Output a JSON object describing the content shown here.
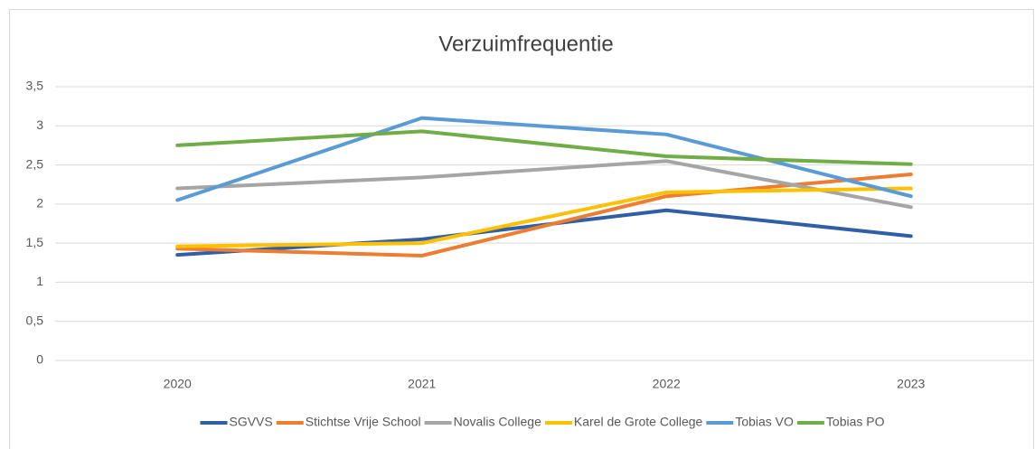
{
  "chart_data": {
    "type": "line",
    "title": "Verzuimfrequentie",
    "categories": [
      "2020",
      "2021",
      "2022",
      "2023"
    ],
    "series": [
      {
        "name": "SGVVS",
        "color": "#2f5fa7",
        "values": [
          1.35,
          1.55,
          1.92,
          1.59
        ]
      },
      {
        "name": "Stichtse Vrije School",
        "color": "#ed7d31",
        "values": [
          1.43,
          1.34,
          2.1,
          2.38
        ]
      },
      {
        "name": "Novalis College",
        "color": "#a5a5a5",
        "values": [
          2.2,
          2.34,
          2.55,
          1.96
        ]
      },
      {
        "name": "Karel de Grote College",
        "color": "#ffc000",
        "values": [
          1.46,
          1.5,
          2.15,
          2.2
        ]
      },
      {
        "name": "Tobias VO",
        "color": "#5b9bd5",
        "values": [
          2.05,
          3.1,
          2.89,
          2.1
        ]
      },
      {
        "name": "Tobias PO",
        "color": "#70ad47",
        "values": [
          2.75,
          2.93,
          2.61,
          2.51
        ]
      }
    ],
    "ylim": [
      0,
      3.5
    ],
    "yticks": [
      0,
      {
        "value": 0.5,
        "label": "0,5"
      },
      1,
      {
        "value": 1.5,
        "label": "1,5"
      },
      2,
      {
        "value": 2.5,
        "label": "2,5"
      },
      3,
      {
        "value": 3.5,
        "label": "3,5"
      }
    ],
    "grid": true,
    "legend": "bottom"
  }
}
